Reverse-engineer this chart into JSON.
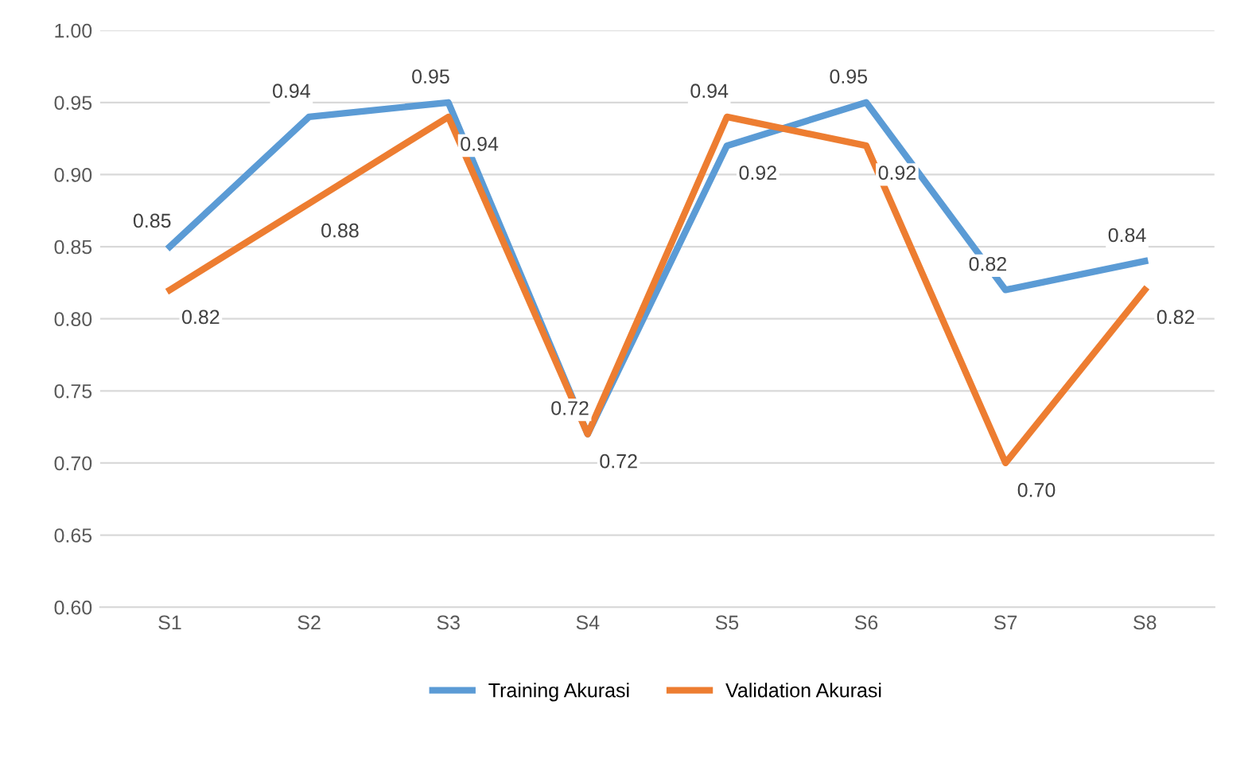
{
  "chart_data": {
    "type": "line",
    "categories": [
      "S1",
      "S2",
      "S3",
      "S4",
      "S5",
      "S6",
      "S7",
      "S8"
    ],
    "series": [
      {
        "name": "Training Akurasi",
        "color": "#5b9bd5",
        "values": [
          0.85,
          0.94,
          0.95,
          0.72,
          0.92,
          0.95,
          0.82,
          0.84
        ],
        "value_labels": [
          "0.85",
          "0.94",
          "0.95",
          "0.72",
          "0.92",
          "0.95",
          "0.82",
          "0.84"
        ]
      },
      {
        "name": "Validation Akurasi",
        "color": "#ed7d31",
        "values": [
          0.82,
          0.88,
          0.94,
          0.72,
          0.94,
          0.92,
          0.7,
          0.82
        ],
        "value_labels": [
          "0.82",
          "0.88",
          "0.94",
          "0.72",
          "0.94",
          "0.92",
          "0.70",
          "0.82"
        ]
      }
    ],
    "ylim": [
      0.6,
      1.0
    ],
    "yticks": [
      {
        "value": 0.6,
        "label": "0.60"
      },
      {
        "value": 0.65,
        "label": "0.65"
      },
      {
        "value": 0.7,
        "label": "0.70"
      },
      {
        "value": 0.75,
        "label": "0.75"
      },
      {
        "value": 0.8,
        "label": "0.80"
      },
      {
        "value": 0.85,
        "label": "0.85"
      },
      {
        "value": 0.9,
        "label": "0.90"
      },
      {
        "value": 0.95,
        "label": "0.95"
      },
      {
        "value": 1.0,
        "label": "1.00"
      }
    ],
    "grid": "y",
    "legend": "bottom",
    "marker": "none",
    "line_style": "solid"
  }
}
